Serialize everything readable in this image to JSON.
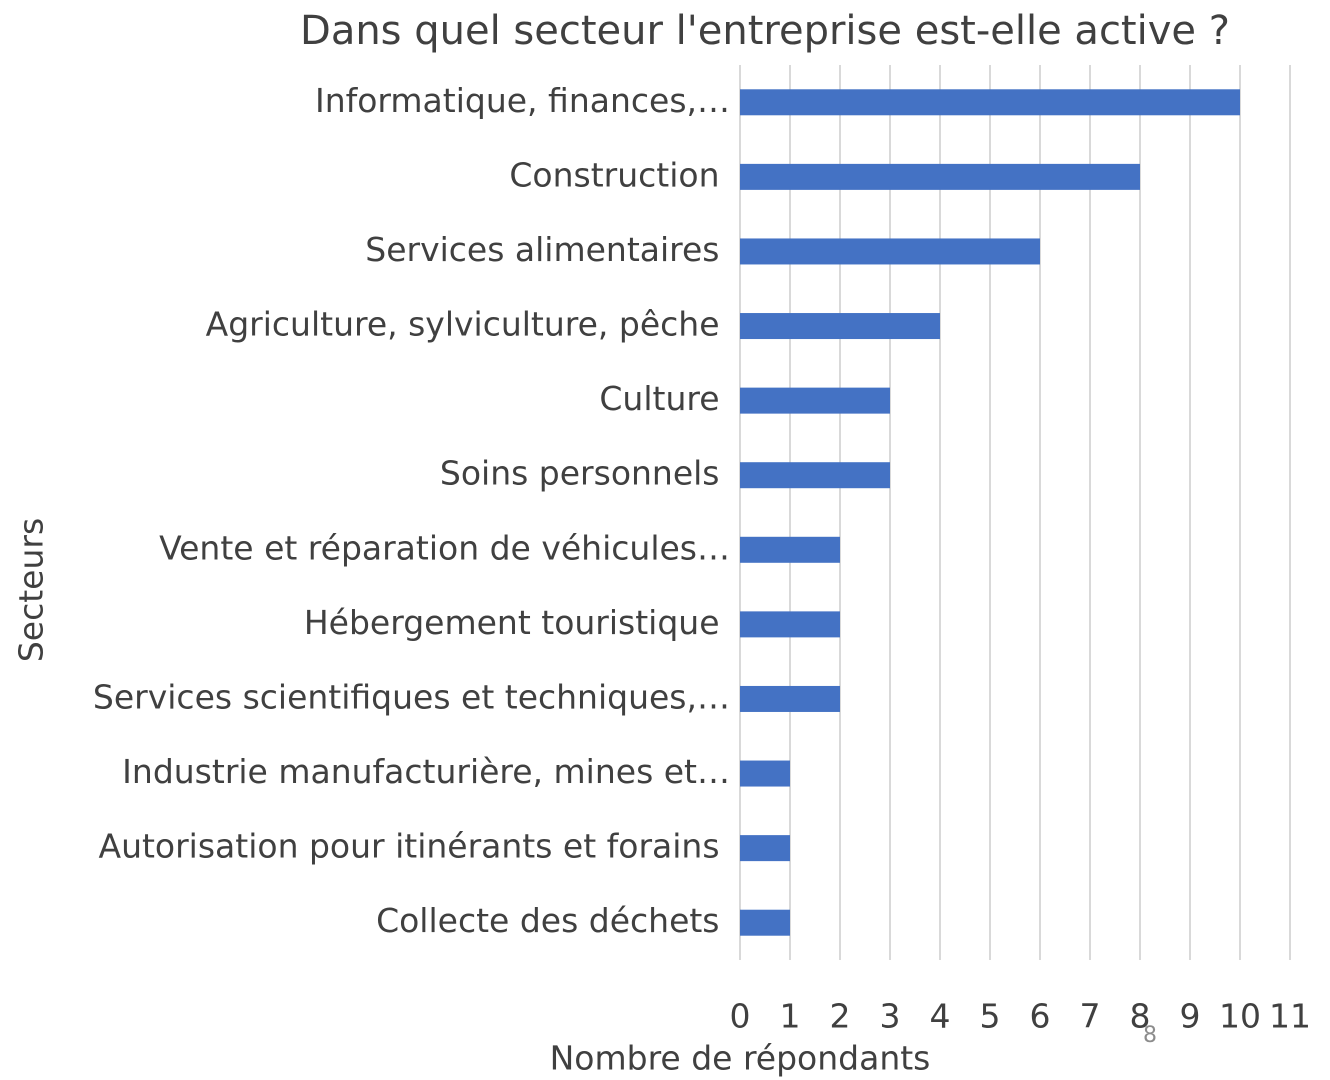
{
  "chart_data": {
    "type": "barh",
    "title": "Dans quel secteur l'entreprise est-elle active ?",
    "categories": [
      "Informatique, finances,…",
      "Construction ",
      "Services alimentaires ",
      "Agriculture, sylviculture, pêche ",
      "Culture ",
      "Soins personnels ",
      "Vente et réparation de véhicules…",
      "Hébergement touristique ",
      "Services scientifiques et techniques,…",
      "Industrie manufacturière, mines et…",
      "Autorisation pour itinérants et forains ",
      "Collecte des déchets "
    ],
    "values": [
      10,
      8,
      6,
      4,
      3,
      3,
      2,
      2,
      2,
      1,
      1,
      1
    ],
    "color": "#4472c4",
    "xlim": [
      0,
      11
    ],
    "xticks": [
      0,
      1,
      2,
      3,
      4,
      5,
      6,
      7,
      8,
      9,
      10,
      11
    ],
    "xlabel": "Nombre de répondants",
    "ylabel": "Secteurs",
    "grid": true
  },
  "page_number": "8"
}
